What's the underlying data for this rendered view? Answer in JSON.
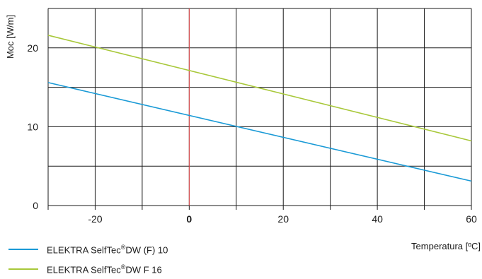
{
  "chart_data": {
    "type": "line",
    "ylabel": "Moc [W/m]",
    "xlabel": "Temperatura [ºC]",
    "xlim": [
      -30,
      60
    ],
    "ylim": [
      0,
      25
    ],
    "x_ticks": [
      -20,
      0,
      20,
      40,
      60
    ],
    "x_ticks_labels": [
      "-20",
      "0",
      "20",
      "40",
      "60"
    ],
    "x_bold_tick": "0",
    "y_ticks": [
      0,
      10,
      20
    ],
    "y_ticks_labels": [
      "0",
      "10",
      "20"
    ],
    "x_grid": [
      -30,
      -20,
      -10,
      0,
      10,
      20,
      30,
      40,
      50,
      60
    ],
    "y_grid": [
      0,
      5,
      10,
      15,
      20,
      25
    ],
    "grid": true,
    "reference_line": {
      "x": 0,
      "color": "#e8484a"
    },
    "series": [
      {
        "name": "ELEKTRA SelfTec®DW (F) 10",
        "name_parts": [
          "ELEKTRA SelfTec",
          "®",
          "DW (F) 10"
        ],
        "color": "#1a9ad6",
        "x": [
          -30,
          60
        ],
        "y": [
          15.6,
          3.1
        ]
      },
      {
        "name": "ELEKTRA SelfTec®DW F 16",
        "name_parts": [
          "ELEKTRA SelfTec",
          "®",
          "DW F 16"
        ],
        "color": "#a8c83a",
        "x": [
          -30,
          60
        ],
        "y": [
          21.6,
          8.2
        ]
      }
    ],
    "legend_position": "bottom-left"
  }
}
